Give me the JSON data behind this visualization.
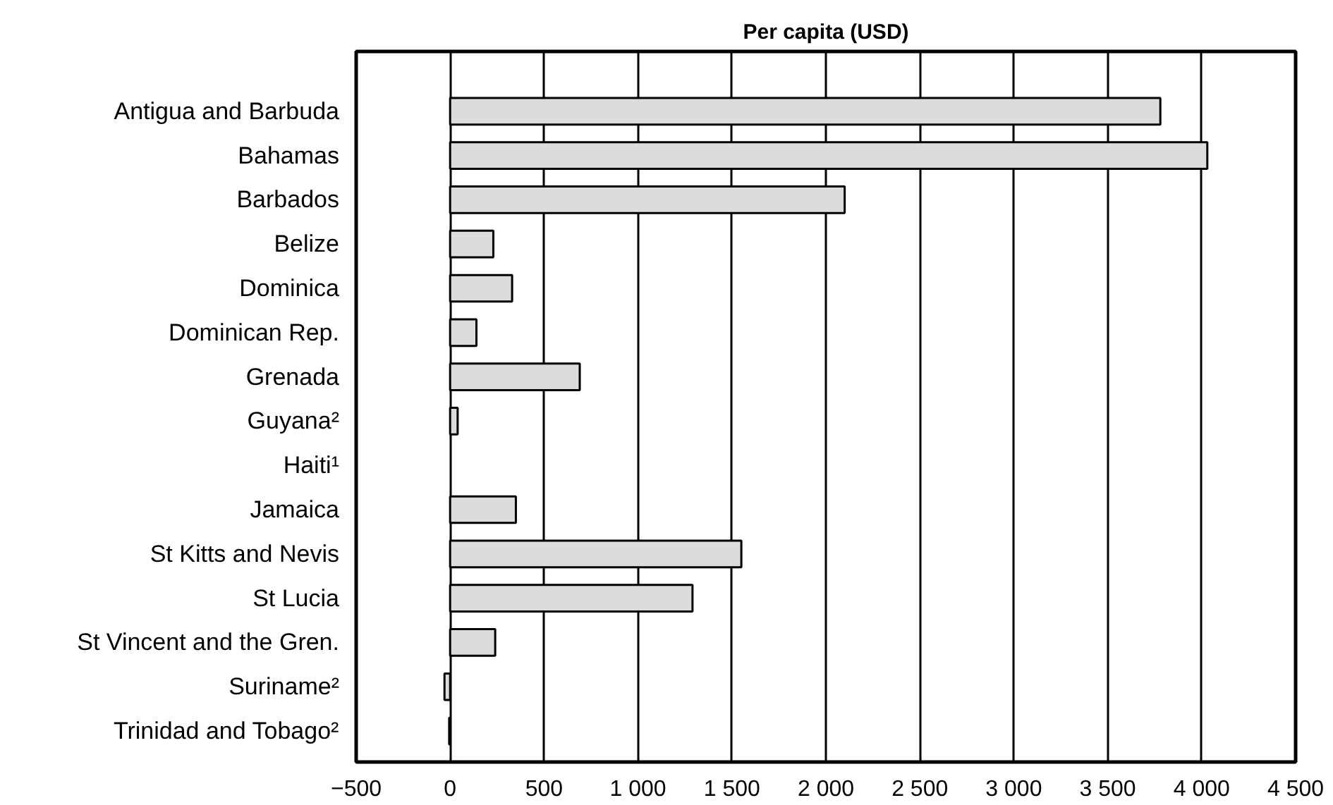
{
  "chart_data": {
    "type": "bar",
    "orientation": "horizontal",
    "title": "Per capita (USD)",
    "categories": [
      "Antigua and Barbuda",
      "Bahamas",
      "Barbados",
      "Belize",
      "Dominica",
      "Dominican Rep.",
      "Grenada",
      "Guyana²",
      "Haiti¹",
      "Jamaica",
      "St Kitts and Nevis",
      "St Lucia",
      "St Vincent and the Gren.",
      "Suriname²",
      "Trinidad and Tobago²"
    ],
    "values": [
      3780,
      4030,
      2100,
      230,
      330,
      140,
      690,
      40,
      null,
      350,
      1550,
      1290,
      240,
      -30,
      -5
    ],
    "color": "#dcdcdc",
    "xlim": [
      -500,
      4500
    ],
    "xticks": [
      {
        "value": -500,
        "label": "−500"
      },
      {
        "value": 0,
        "label": "0"
      },
      {
        "value": 500,
        "label": "500"
      },
      {
        "value": 1000,
        "label": "1 000"
      },
      {
        "value": 1500,
        "label": "1 500"
      },
      {
        "value": 2000,
        "label": "2 000"
      },
      {
        "value": 2500,
        "label": "2 500"
      },
      {
        "value": 3000,
        "label": "3 000"
      },
      {
        "value": 3500,
        "label": "3 500"
      },
      {
        "value": 4000,
        "label": "4 000"
      },
      {
        "value": 4500,
        "label": "4 500"
      }
    ],
    "grid": "x"
  }
}
